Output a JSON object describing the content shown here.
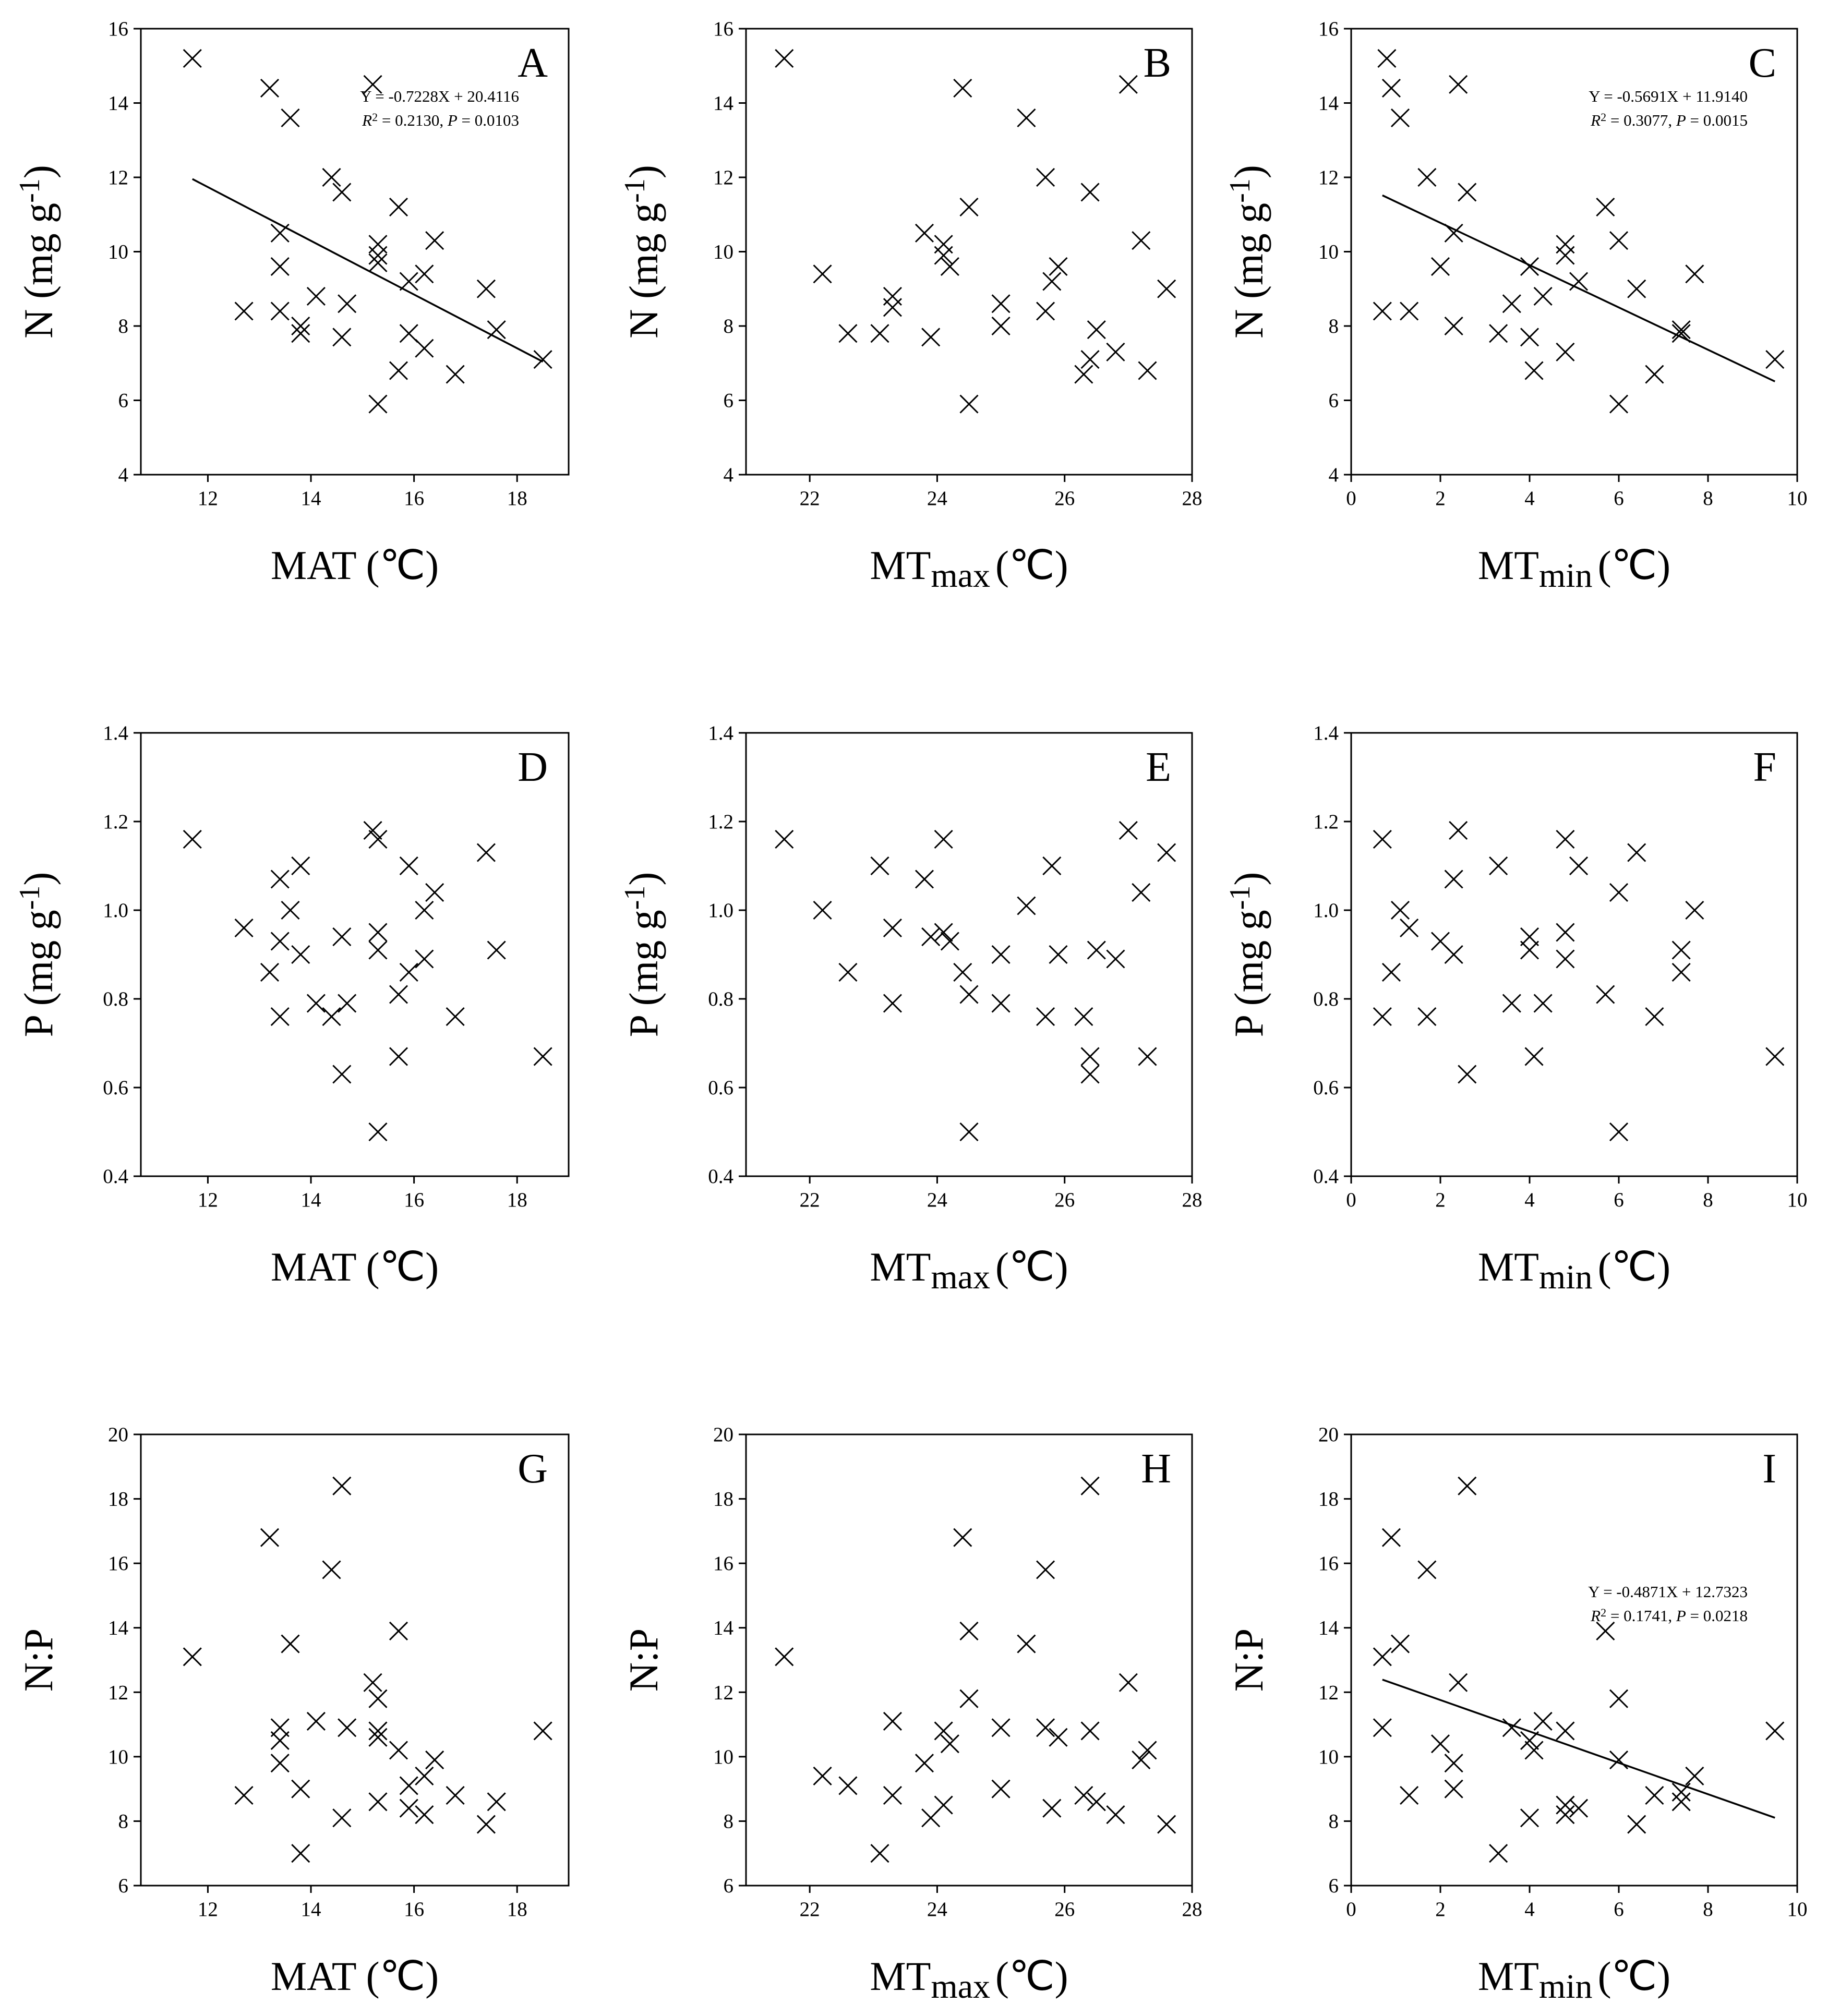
{
  "figure": {
    "panels": [
      {
        "letter": "A",
        "xlabel": "MAT (℃)",
        "ylabel": "N (mg g-1)",
        "equation": "Y = -0.7228X + 20.4116",
        "r2": "R2 = 0.2130, P = 0.0103"
      },
      {
        "letter": "B",
        "xlabel": "MTmax (℃)",
        "ylabel": "N (mg g-1)"
      },
      {
        "letter": "C",
        "xlabel": "MTmin (℃)",
        "ylabel": "N (mg g-1)",
        "equation": "Y = -0.5691X + 11.9140",
        "r2": "R2 = 0.3077, P = 0.0015"
      },
      {
        "letter": "D",
        "xlabel": "MAT (℃)",
        "ylabel": "P (mg g-1)"
      },
      {
        "letter": "E",
        "xlabel": "MTmax (℃)",
        "ylabel": "P (mg g-1)"
      },
      {
        "letter": "F",
        "xlabel": "MTmin (℃)",
        "ylabel": "P (mg g-1)"
      },
      {
        "letter": "G",
        "xlabel": "MAT (℃)",
        "ylabel": "N:P"
      },
      {
        "letter": "H",
        "xlabel": "MTmax (℃)",
        "ylabel": "N:P"
      },
      {
        "letter": "I",
        "xlabel": "MTmin (℃)",
        "ylabel": "N:P",
        "equation": "Y = -0.4871X + 12.7323",
        "r2": "R2 = 0.1741, P = 0.0218"
      }
    ]
  },
  "chart_data": [
    {
      "type": "scatter",
      "panel": "A",
      "xlabel": "MAT (℃)",
      "ylabel": "N (mg g-1)",
      "xlim": [
        10.7,
        19
      ],
      "ylim": [
        4,
        16
      ],
      "xticks": [
        12,
        14,
        16,
        18
      ],
      "yticks": [
        4,
        6,
        8,
        10,
        12,
        14,
        16
      ],
      "x": [
        11.7,
        13.2,
        13.6,
        15.2,
        14.4,
        14.6,
        15.7,
        13.4,
        15.3,
        15.3,
        15.3,
        13.4,
        16.4,
        16.2,
        15.9,
        17.4,
        14.1,
        14.7,
        13.4,
        12.7,
        13.8,
        13.8,
        17.6,
        15.9,
        14.6,
        16.2,
        18.5,
        15.7,
        16.8,
        15.3
      ],
      "y": [
        15.2,
        14.4,
        13.6,
        14.5,
        12.0,
        11.6,
        11.2,
        10.5,
        10.2,
        9.9,
        9.7,
        9.6,
        10.3,
        9.4,
        9.2,
        9.0,
        8.8,
        8.6,
        8.4,
        8.4,
        8.0,
        7.8,
        7.9,
        7.8,
        7.7,
        7.4,
        7.1,
        6.8,
        6.7,
        5.9
      ],
      "fit": {
        "slope": -0.7228,
        "intercept": 20.4116,
        "xrange": [
          11.7,
          18.5
        ]
      },
      "equation": "Y = -0.7228X + 20.4116",
      "r2": "R2 = 0.2130, P = 0.0103"
    },
    {
      "type": "scatter",
      "panel": "B",
      "xlabel": "MTmax (℃)",
      "ylabel": "N (mg g-1)",
      "xlim": [
        21,
        28
      ],
      "ylim": [
        4,
        16
      ],
      "xticks": [
        22,
        24,
        26,
        28
      ],
      "yticks": [
        4,
        6,
        8,
        10,
        12,
        14,
        16
      ],
      "x": [
        21.6,
        24.4,
        25.4,
        27.0,
        25.7,
        26.4,
        24.5,
        23.8,
        24.1,
        24.1,
        24.2,
        22.2,
        25.9,
        25.8,
        27.2,
        27.6,
        23.3,
        23.3,
        25.0,
        25.0,
        25.7,
        22.6,
        23.1,
        23.9,
        26.5,
        26.8,
        26.4,
        26.3,
        27.3,
        24.5
      ],
      "y": [
        15.2,
        14.4,
        13.6,
        14.5,
        12.0,
        11.6,
        11.2,
        10.5,
        10.2,
        9.9,
        9.6,
        9.4,
        9.6,
        9.2,
        10.3,
        9.0,
        8.8,
        8.5,
        8.6,
        8.0,
        8.4,
        7.8,
        7.8,
        7.7,
        7.9,
        7.3,
        7.1,
        6.7,
        6.8,
        5.9
      ]
    },
    {
      "type": "scatter",
      "panel": "C",
      "xlabel": "MTmin (℃)",
      "ylabel": "N (mg g-1)",
      "xlim": [
        0,
        10
      ],
      "ylim": [
        4,
        16
      ],
      "xticks": [
        0,
        2,
        4,
        6,
        8,
        10
      ],
      "yticks": [
        4,
        6,
        8,
        10,
        12,
        14,
        16
      ],
      "x": [
        0.8,
        0.9,
        1.1,
        2.4,
        1.7,
        2.6,
        5.7,
        2.3,
        4.8,
        4.8,
        2.0,
        4.0,
        5.1,
        6.0,
        6.4,
        7.7,
        4.3,
        3.6,
        1.3,
        0.7,
        2.3,
        3.3,
        4.0,
        7.4,
        7.4,
        4.8,
        9.5,
        4.1,
        6.8,
        6.0
      ],
      "y": [
        15.2,
        14.4,
        13.6,
        14.5,
        12.0,
        11.6,
        11.2,
        10.5,
        10.2,
        9.9,
        9.6,
        9.6,
        9.2,
        10.3,
        9.0,
        9.4,
        8.8,
        8.6,
        8.4,
        8.4,
        8.0,
        7.8,
        7.7,
        7.9,
        7.8,
        7.3,
        7.1,
        6.8,
        6.7,
        5.9
      ],
      "fit": {
        "slope": -0.5691,
        "intercept": 11.914,
        "xrange": [
          0.7,
          9.5
        ]
      },
      "equation": "Y = -0.5691X + 11.9140",
      "r2": "R2 = 0.3077, P = 0.0015"
    },
    {
      "type": "scatter",
      "panel": "D",
      "xlabel": "MAT (℃)",
      "ylabel": "P (mg g-1)",
      "xlim": [
        10.7,
        19
      ],
      "ylim": [
        0.4,
        1.4
      ],
      "xticks": [
        12,
        14,
        16,
        18
      ],
      "yticks": [
        0.4,
        0.6,
        0.8,
        1.0,
        1.2,
        1.4
      ],
      "x": [
        11.7,
        15.2,
        15.3,
        17.4,
        13.8,
        15.9,
        13.4,
        16.4,
        13.6,
        16.2,
        12.7,
        14.6,
        15.3,
        13.4,
        15.3,
        17.6,
        13.8,
        16.2,
        13.2,
        15.9,
        15.7,
        14.1,
        14.7,
        13.4,
        14.4,
        16.8,
        15.7,
        18.5,
        14.6,
        15.3
      ],
      "y": [
        1.16,
        1.18,
        1.16,
        1.13,
        1.1,
        1.1,
        1.07,
        1.04,
        1.0,
        1.0,
        0.96,
        0.94,
        0.95,
        0.93,
        0.91,
        0.91,
        0.9,
        0.89,
        0.86,
        0.86,
        0.81,
        0.79,
        0.79,
        0.76,
        0.76,
        0.76,
        0.67,
        0.67,
        0.63,
        0.5
      ]
    },
    {
      "type": "scatter",
      "panel": "E",
      "xlabel": "MTmax (℃)",
      "ylabel": "P (mg g-1)",
      "xlim": [
        21,
        28
      ],
      "ylim": [
        0.4,
        1.4
      ],
      "xticks": [
        22,
        24,
        26,
        28
      ],
      "yticks": [
        0.4,
        0.6,
        0.8,
        1.0,
        1.2,
        1.4
      ],
      "x": [
        21.6,
        24.1,
        27.0,
        27.6,
        23.1,
        25.8,
        23.8,
        27.2,
        22.2,
        25.4,
        23.3,
        23.9,
        24.1,
        24.2,
        25.0,
        25.9,
        26.5,
        26.8,
        22.6,
        24.4,
        24.5,
        23.3,
        25.0,
        25.7,
        26.3,
        26.4,
        27.3,
        26.4,
        24.5
      ],
      "y": [
        1.16,
        1.16,
        1.18,
        1.13,
        1.1,
        1.1,
        1.07,
        1.04,
        1.0,
        1.01,
        0.96,
        0.94,
        0.95,
        0.93,
        0.9,
        0.9,
        0.91,
        0.89,
        0.86,
        0.86,
        0.81,
        0.79,
        0.79,
        0.76,
        0.76,
        0.67,
        0.67,
        0.63,
        0.5
      ]
    },
    {
      "type": "scatter",
      "panel": "F",
      "xlabel": "MTmin (℃)",
      "ylabel": "P (mg g-1)",
      "xlim": [
        0,
        10
      ],
      "ylim": [
        0.4,
        1.4
      ],
      "xticks": [
        0,
        2,
        4,
        6,
        8,
        10
      ],
      "yticks": [
        0.4,
        0.6,
        0.8,
        1.0,
        1.2,
        1.4
      ],
      "x": [
        0.7,
        2.4,
        4.8,
        6.4,
        3.3,
        5.1,
        2.3,
        6.0,
        1.1,
        7.7,
        1.3,
        2.0,
        4.0,
        4.8,
        2.3,
        4.0,
        4.8,
        7.4,
        0.9,
        7.4,
        5.7,
        3.6,
        4.3,
        0.7,
        1.7,
        6.8,
        4.1,
        9.5,
        2.6,
        6.0
      ],
      "y": [
        1.16,
        1.18,
        1.16,
        1.13,
        1.1,
        1.1,
        1.07,
        1.04,
        1.0,
        1.0,
        0.96,
        0.93,
        0.94,
        0.95,
        0.9,
        0.91,
        0.89,
        0.91,
        0.86,
        0.86,
        0.81,
        0.79,
        0.79,
        0.76,
        0.76,
        0.76,
        0.67,
        0.67,
        0.63,
        0.5
      ]
    },
    {
      "type": "scatter",
      "panel": "G",
      "xlabel": "MAT (℃)",
      "ylabel": "N:P",
      "xlim": [
        10.7,
        19
      ],
      "ylim": [
        6,
        20
      ],
      "xticks": [
        12,
        14,
        16,
        18
      ],
      "yticks": [
        6,
        8,
        10,
        12,
        14,
        16,
        18,
        20
      ],
      "x": [
        14.6,
        13.2,
        14.4,
        15.7,
        13.6,
        11.7,
        15.2,
        15.3,
        14.1,
        13.4,
        15.3,
        15.3,
        14.7,
        18.5,
        13.4,
        15.7,
        16.4,
        13.4,
        16.2,
        15.9,
        13.8,
        12.7,
        16.8,
        15.9,
        17.6,
        15.3,
        16.2,
        14.6,
        17.4,
        13.8
      ],
      "y": [
        18.4,
        16.8,
        15.8,
        13.9,
        13.5,
        13.1,
        12.3,
        11.8,
        11.1,
        10.9,
        10.8,
        10.6,
        10.9,
        10.8,
        10.5,
        10.2,
        9.9,
        9.8,
        9.4,
        9.1,
        9.0,
        8.8,
        8.8,
        8.4,
        8.6,
        8.6,
        8.2,
        8.1,
        7.9,
        7.0
      ]
    },
    {
      "type": "scatter",
      "panel": "H",
      "xlabel": "MTmax (℃)",
      "ylabel": "N:P",
      "xlim": [
        21,
        28
      ],
      "ylim": [
        6,
        20
      ],
      "xticks": [
        22,
        24,
        26,
        28
      ],
      "yticks": [
        6,
        8,
        10,
        12,
        14,
        16,
        18,
        20
      ],
      "x": [
        26.4,
        24.4,
        25.7,
        24.5,
        25.4,
        21.6,
        27.0,
        24.5,
        23.3,
        24.1,
        25.7,
        25.9,
        26.4,
        24.2,
        25.0,
        27.3,
        27.2,
        23.8,
        22.2,
        22.6,
        25.0,
        23.3,
        26.3,
        26.5,
        24.1,
        25.8,
        26.8,
        23.9,
        27.6,
        23.1
      ],
      "y": [
        18.4,
        16.8,
        15.8,
        13.9,
        13.5,
        13.1,
        12.3,
        11.8,
        11.1,
        10.8,
        10.9,
        10.6,
        10.8,
        10.4,
        10.9,
        10.2,
        9.9,
        9.8,
        9.4,
        9.1,
        9.0,
        8.8,
        8.8,
        8.6,
        8.5,
        8.4,
        8.2,
        8.1,
        7.9,
        7.0
      ]
    },
    {
      "type": "scatter",
      "panel": "I",
      "xlabel": "MTmin (℃)",
      "ylabel": "N:P",
      "xlim": [
        0,
        10
      ],
      "ylim": [
        6,
        20
      ],
      "xticks": [
        0,
        2,
        4,
        6,
        8,
        10
      ],
      "yticks": [
        6,
        8,
        10,
        12,
        14,
        16,
        18,
        20
      ],
      "x": [
        2.6,
        0.9,
        1.7,
        5.7,
        1.1,
        0.7,
        2.4,
        6.0,
        4.3,
        0.7,
        3.6,
        4.8,
        9.5,
        4.0,
        4.1,
        2.0,
        6.0,
        2.3,
        7.7,
        2.3,
        6.8,
        1.3,
        7.4,
        7.4,
        4.8,
        5.1,
        4.8,
        4.0,
        6.4,
        3.3
      ],
      "y": [
        18.4,
        16.8,
        15.8,
        13.9,
        13.5,
        13.1,
        12.3,
        11.8,
        11.1,
        10.9,
        10.9,
        10.8,
        10.8,
        10.5,
        10.2,
        10.4,
        9.9,
        9.8,
        9.4,
        9.0,
        8.8,
        8.8,
        8.9,
        8.6,
        8.5,
        8.4,
        8.2,
        8.1,
        7.9,
        7.0
      ],
      "fit": {
        "slope": -0.4871,
        "intercept": 12.7323,
        "xrange": [
          0.7,
          9.5
        ]
      },
      "equation": "Y = -0.4871X + 12.7323",
      "r2": "R2 = 0.1741, P = 0.0218"
    }
  ]
}
